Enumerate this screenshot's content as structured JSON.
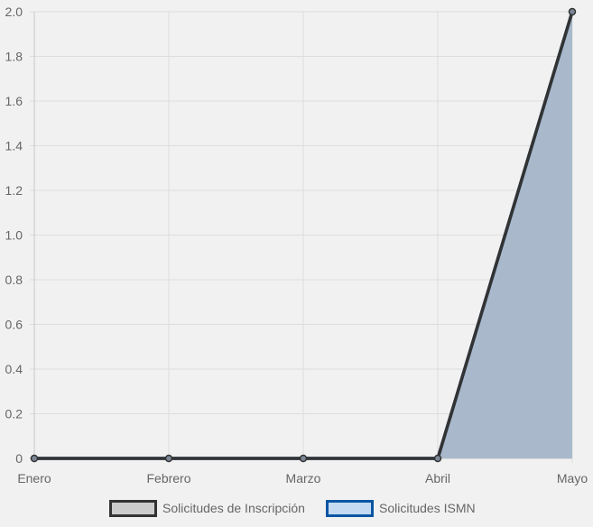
{
  "chart_data": {
    "type": "line",
    "categories": [
      "Enero",
      "Febrero",
      "Marzo",
      "Abril",
      "Mayo"
    ],
    "ylim": [
      0,
      2.0
    ],
    "y_ticks": [
      "0",
      "0.2",
      "0.4",
      "0.6",
      "0.8",
      "1.0",
      "1.2",
      "1.4",
      "1.6",
      "1.8",
      "2.0"
    ],
    "grid": true,
    "legend_position": "bottom",
    "series": [
      {
        "name": "Solicitudes de Inscripción",
        "values": [
          0,
          0,
          0,
          0,
          2
        ],
        "line_color": "#333333",
        "fill_color": "#cccccc"
      },
      {
        "name": "Solicitudes ISMN",
        "values": [
          0,
          0,
          0,
          0,
          2
        ],
        "line_color": "#0a56a3",
        "fill_color": "#c3daf2",
        "area_color": "#a9b9cb"
      }
    ]
  }
}
